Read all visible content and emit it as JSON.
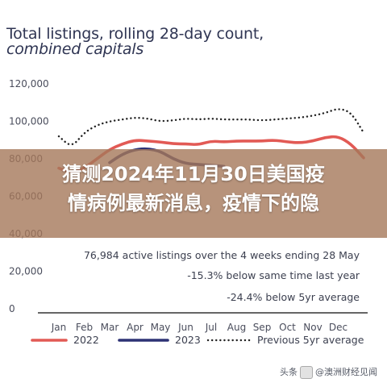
{
  "chart_data": {
    "type": "line",
    "title": "Total listings, rolling 28-day count,",
    "subtitle": "combined capitals",
    "categories": [
      "Jan",
      "Feb",
      "Mar",
      "Apr",
      "May",
      "Jun",
      "Jul",
      "Aug",
      "Sep",
      "Oct",
      "Nov",
      "Dec"
    ],
    "ylim": [
      0,
      120000
    ],
    "yticks": [
      "0",
      "20,000",
      "40,000",
      "60,000",
      "80,000",
      "100,000",
      "120,000"
    ],
    "grid": false,
    "legend_position": "bottom",
    "series": [
      {
        "name": "2022",
        "color": "#e25a55",
        "style": "solid",
        "points": [
          [
            1.0,
            75000
          ],
          [
            1.5,
            72500
          ],
          [
            2.0,
            75000
          ],
          [
            2.5,
            80000
          ],
          [
            3.0,
            85000
          ],
          [
            3.5,
            88000
          ],
          [
            4.0,
            90000
          ],
          [
            4.5,
            89500
          ],
          [
            5.0,
            89000
          ],
          [
            5.5,
            88000
          ],
          [
            6.0,
            88000
          ],
          [
            6.5,
            87500
          ],
          [
            7.0,
            89500
          ],
          [
            7.5,
            89000
          ],
          [
            8.0,
            89500
          ],
          [
            8.5,
            89500
          ],
          [
            9.0,
            89500
          ],
          [
            9.5,
            90000
          ],
          [
            10.0,
            89000
          ],
          [
            10.5,
            88500
          ],
          [
            11.0,
            89500
          ],
          [
            11.5,
            91500
          ],
          [
            12.0,
            92000
          ],
          [
            12.5,
            88000
          ],
          [
            13.0,
            80500
          ]
        ]
      },
      {
        "name": "2023",
        "color": "#2d3275",
        "style": "solid",
        "points": [
          [
            3.0,
            78000
          ],
          [
            3.5,
            82500
          ],
          [
            4.0,
            85000
          ],
          [
            4.5,
            85500
          ],
          [
            5.0,
            84000
          ],
          [
            5.5,
            80000
          ],
          [
            6.0,
            77500
          ],
          [
            6.5,
            77000
          ],
          [
            7.0,
            76500
          ],
          [
            7.5,
            76000
          ]
        ]
      },
      {
        "name": "Previous 5yr average",
        "color": "#222222",
        "style": "dotted",
        "points": [
          [
            1.0,
            92000
          ],
          [
            1.5,
            86000
          ],
          [
            2.0,
            94000
          ],
          [
            2.5,
            98000
          ],
          [
            3.0,
            100000
          ],
          [
            3.5,
            101000
          ],
          [
            4.0,
            102000
          ],
          [
            4.5,
            101500
          ],
          [
            5.0,
            100000
          ],
          [
            5.5,
            100500
          ],
          [
            6.0,
            101500
          ],
          [
            6.5,
            101000
          ],
          [
            7.0,
            101500
          ],
          [
            7.5,
            101000
          ],
          [
            8.0,
            101000
          ],
          [
            8.5,
            101000
          ],
          [
            9.0,
            100500
          ],
          [
            9.5,
            101000
          ],
          [
            10.0,
            101500
          ],
          [
            10.5,
            102000
          ],
          [
            11.0,
            103000
          ],
          [
            11.5,
            104500
          ],
          [
            12.0,
            107000
          ],
          [
            12.5,
            105000
          ],
          [
            13.0,
            94000
          ]
        ]
      }
    ],
    "annotations": [
      "76,984 active listings over the 4 weeks ending 28 May",
      "-15.3% below same time last year",
      "-24.4% below 5yr average"
    ]
  },
  "overlay": {
    "line1": "猜测2024年11月30日美国疫",
    "line2": "情病例最新消息，疫情下的隐"
  },
  "watermark": {
    "prefix": "头条",
    "account": "@澳洲财经见闻"
  },
  "colors": {
    "title": "#2f3553",
    "axis": "#333333",
    "overlay_band": "#a5785a"
  }
}
